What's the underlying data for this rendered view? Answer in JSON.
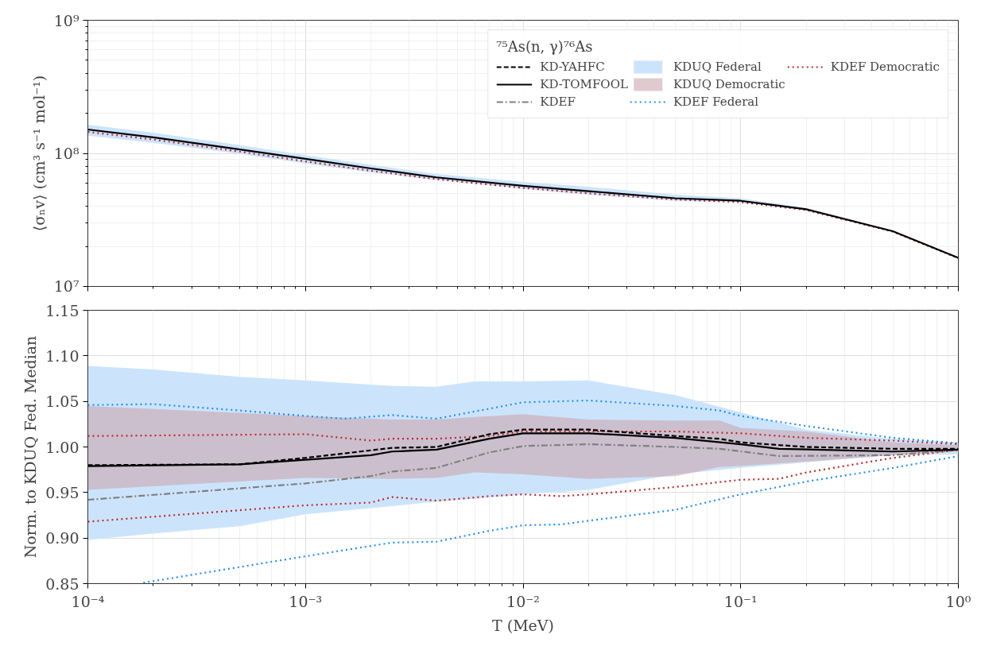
{
  "chart_data": [
    {
      "type": "line",
      "ylabel": "⟨σₙv⟩ (cm³ s⁻¹ mol⁻¹)",
      "legend_title": "⁷⁵As(n, γ)⁷⁶As",
      "log": "xy",
      "grid": true,
      "legend": "top right",
      "tick_labels": "y",
      "xlim": [
        0.0001,
        1
      ],
      "xticks": [
        {
          "value": 0.0001,
          "label": null
        },
        {
          "value": 0.001,
          "label": null
        },
        {
          "value": 0.01,
          "label": null
        },
        {
          "value": 0.1,
          "label": null
        },
        {
          "value": 1,
          "label": null
        }
      ],
      "ylim": [
        10000000,
        1000000000
      ],
      "yticks": [
        {
          "value": 10000000,
          "label": "10⁷"
        },
        {
          "value": 100000000,
          "label": "10⁸"
        },
        {
          "value": 1000000000,
          "label": "10⁹"
        }
      ],
      "x": [
        0.0001,
        0.0002,
        0.0005,
        0.001,
        0.002,
        0.004,
        0.01,
        0.02,
        0.05,
        0.1,
        0.2,
        0.5,
        1
      ],
      "series": [
        {
          "name": "KD-YAHFC",
          "color": "#000000",
          "line_style": "dashed",
          "values": [
            null,
            null,
            null,
            null,
            null,
            null,
            null,
            null,
            null,
            null,
            null,
            null,
            null
          ]
        },
        {
          "name": "KD-TOMFOOL",
          "color": "#000000",
          "line_style": "solid",
          "values": [
            151000000.0,
            132000000.0,
            107000000.0,
            91000000.0,
            77000000.0,
            66000000.0,
            57000000.0,
            52000000.0,
            46000000.0,
            44000000.0,
            38000000.0,
            26000000.0,
            16400000.0
          ]
        },
        {
          "name": "KDEF",
          "color": "#808080",
          "line_style": "dashdot",
          "values": [
            null,
            null,
            null,
            null,
            null,
            null,
            null,
            null,
            null,
            null,
            null,
            null,
            null
          ]
        },
        {
          "name": "KDUQ Federal",
          "type": "area",
          "color": "#cce4fb",
          "values": [
            null,
            null,
            null,
            null,
            null,
            null,
            null,
            null,
            null,
            null,
            null,
            null,
            null
          ],
          "lower": [
            136000000.0,
            120000000.0,
            99000000.0,
            84000000.0,
            72000000.0,
            63000000.0,
            54000000.0,
            49000000.0,
            44000000.0,
            43000000.0,
            37500000.0,
            25800000.0,
            16300000.0
          ],
          "upper": [
            164000000.0,
            143000000.0,
            115000000.0,
            97000000.0,
            82000000.0,
            70000000.0,
            61000000.0,
            56000000.0,
            49000000.0,
            46000000.0,
            39000000.0,
            26400000.0,
            16500000.0
          ]
        },
        {
          "name": "KDUQ Democratic",
          "type": "area",
          "color": "#c9a6b0",
          "values": [
            null,
            null,
            null,
            null,
            null,
            null,
            null,
            null,
            null,
            null,
            null,
            null,
            null
          ]
        },
        {
          "name": "KDEF Federal",
          "color": "#1e8fff",
          "line_style": "dotted",
          "values": [
            null,
            null,
            null,
            null,
            null,
            null,
            null,
            null,
            null,
            null,
            null,
            null,
            null
          ]
        },
        {
          "name": "KDEF Democratic",
          "color": "#c0282d",
          "line_style": "dotted",
          "values": [
            145000000.0,
            127000000.0,
            103000000.0,
            87000000.0,
            74000000.0,
            64000000.0,
            55000000.0,
            50000000.0,
            45000000.0,
            43000000.0,
            37500000.0,
            25800000.0,
            16300000.0
          ]
        }
      ]
    },
    {
      "type": "line",
      "xlabel": "T (MeV)",
      "ylabel": "Norm. to KDUQ Fed. Median",
      "log": "x",
      "grid": true,
      "xlim": [
        0.0001,
        1
      ],
      "xticks": [
        {
          "value": 0.0001,
          "label": "10⁻⁴"
        },
        {
          "value": 0.001,
          "label": "10⁻³"
        },
        {
          "value": 0.01,
          "label": "10⁻²"
        },
        {
          "value": 0.1,
          "label": "10⁻¹"
        },
        {
          "value": 1,
          "label": "10⁰"
        }
      ],
      "ylim": [
        0.85,
        1.15
      ],
      "yticks": [
        {
          "value": 0.85,
          "label": "0.85"
        },
        {
          "value": 0.9,
          "label": "0.90"
        },
        {
          "value": 0.95,
          "label": "0.95"
        },
        {
          "value": 1.0,
          "label": "1.00"
        },
        {
          "value": 1.05,
          "label": "1.05"
        },
        {
          "value": 1.1,
          "label": "1.10"
        },
        {
          "value": 1.15,
          "label": "1.15"
        }
      ],
      "series": [
        {
          "type": "area",
          "color": "#cce4fb",
          "x": [
            0.0001,
            0.0002,
            0.0005,
            0.001,
            0.0025,
            0.004,
            0.006,
            0.01,
            0.02,
            0.05,
            0.1,
            0.2,
            0.5,
            1
          ],
          "values": [
            null,
            null,
            null,
            null,
            null,
            null,
            null,
            null,
            null,
            null,
            null,
            null,
            null,
            null
          ],
          "upper": [
            1.089,
            1.085,
            1.077,
            1.073,
            1.067,
            1.066,
            1.072,
            1.072,
            1.073,
            1.057,
            1.038,
            1.019,
            1.009,
            1.005
          ],
          "lower": [
            0.898,
            0.905,
            0.913,
            0.926,
            0.935,
            0.94,
            0.943,
            0.948,
            0.953,
            0.97,
            0.977,
            0.983,
            0.991,
            0.992
          ]
        },
        {
          "type": "area",
          "color": "#c9a6b0",
          "x": [
            0.0001,
            0.001,
            0.0025,
            0.004,
            0.006,
            0.01,
            0.02,
            0.05,
            0.08,
            0.1,
            0.2,
            0.5,
            1
          ],
          "values": [
            null,
            null,
            null,
            null,
            null,
            null,
            null,
            null,
            null,
            null,
            null,
            null,
            null
          ],
          "upper": [
            1.045,
            1.034,
            1.03,
            1.03,
            1.033,
            1.036,
            1.03,
            1.029,
            1.029,
            1.021,
            1.017,
            1.005,
            1.002
          ],
          "lower": [
            0.953,
            0.966,
            0.965,
            0.966,
            0.972,
            0.97,
            0.965,
            0.968,
            0.978,
            0.979,
            0.984,
            0.991,
            0.995
          ]
        },
        {
          "color": "#1e8fff",
          "line_style": "dotted",
          "x": [
            0.0001,
            0.0002,
            0.0005,
            0.001,
            0.0015,
            0.0025,
            0.004,
            0.007,
            0.01,
            0.02,
            0.05,
            0.08,
            0.1,
            0.2,
            0.5,
            1
          ],
          "values": [
            1.046,
            1.047,
            1.04,
            1.034,
            1.031,
            1.035,
            1.031,
            1.042,
            1.049,
            1.051,
            1.045,
            1.04,
            1.034,
            1.023,
            1.01,
            1.004
          ]
        },
        {
          "color": "#1e8fff",
          "line_style": "dotted",
          "x": [
            0.00018,
            0.001,
            0.0025,
            0.004,
            0.007,
            0.01,
            0.015,
            0.02,
            0.05,
            0.1,
            0.2,
            0.5,
            1
          ],
          "values": [
            0.851,
            0.88,
            0.895,
            0.896,
            0.908,
            0.914,
            0.915,
            0.919,
            0.931,
            0.948,
            0.962,
            0.977,
            0.99
          ]
        },
        {
          "color": "#c0282d",
          "line_style": "dotted",
          "x": [
            0.0001,
            0.001,
            0.002,
            0.0025,
            0.004,
            0.007,
            0.01,
            0.05,
            0.1,
            0.2,
            0.5,
            1
          ],
          "values": [
            1.012,
            1.014,
            1.007,
            1.009,
            1.009,
            1.012,
            1.017,
            1.017,
            1.015,
            1.01,
            1.007,
            1.003
          ]
        },
        {
          "color": "#c0282d",
          "line_style": "dotted",
          "x": [
            0.0001,
            0.001,
            0.002,
            0.0025,
            0.004,
            0.007,
            0.01,
            0.015,
            0.02,
            0.05,
            0.1,
            0.15,
            0.2,
            0.5,
            1
          ],
          "values": [
            0.918,
            0.936,
            0.939,
            0.945,
            0.941,
            0.946,
            0.948,
            0.946,
            0.948,
            0.956,
            0.964,
            0.965,
            0.972,
            0.988,
            0.997
          ]
        },
        {
          "color": "#808080",
          "line_style": "dashdot",
          "x": [
            0.0001,
            0.001,
            0.002,
            0.0025,
            0.004,
            0.007,
            0.01,
            0.02,
            0.05,
            0.08,
            0.15,
            0.5,
            1
          ],
          "values": [
            0.942,
            0.96,
            0.968,
            0.973,
            0.977,
            0.994,
            1.001,
            1.003,
            1.0,
            0.998,
            0.99,
            0.991,
            0.997
          ]
        },
        {
          "color": "#000000",
          "line_style": "dashed",
          "x": [
            0.0001,
            0.0005,
            0.001,
            0.0025,
            0.004,
            0.007,
            0.01,
            0.02,
            0.05,
            0.08,
            0.1,
            0.2,
            0.5,
            1
          ],
          "values": [
            0.98,
            0.981,
            0.988,
            0.999,
            1.0,
            1.014,
            1.019,
            1.019,
            1.012,
            1.009,
            1.005,
            1.0,
            0.998,
            0.998
          ]
        },
        {
          "color": "#000000",
          "line_style": "solid",
          "x": [
            0.0001,
            0.0005,
            0.001,
            0.002,
            0.0025,
            0.004,
            0.007,
            0.01,
            0.02,
            0.05,
            0.1,
            0.15,
            0.5,
            1
          ],
          "values": [
            0.979,
            0.981,
            0.986,
            0.991,
            0.995,
            0.997,
            1.009,
            1.015,
            1.015,
            1.01,
            1.003,
            0.998,
            0.995,
            0.997
          ]
        }
      ]
    }
  ]
}
